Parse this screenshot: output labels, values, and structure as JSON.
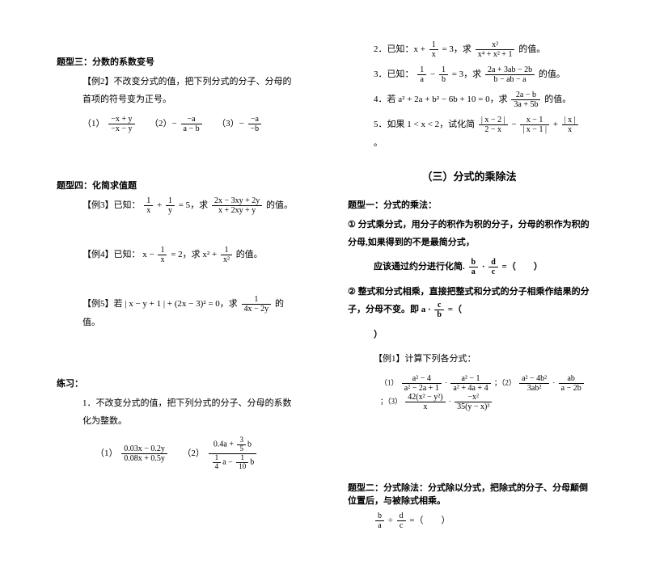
{
  "left": {
    "section3": {
      "title": "题型三：分数的系数变号",
      "ex2_label": "【例2】不改变分式的值，把下列分式的分子、分母的首项的符号变为正号。",
      "items": {
        "a_label": "（1）",
        "a": {
          "num": "−x + y",
          "den": "−x − y"
        },
        "b_label": "（2）−",
        "b": {
          "num": "−a",
          "den": "a − b"
        },
        "c_label": "（3）−",
        "c": {
          "num": "−a",
          "den": "−b"
        }
      }
    },
    "section4": {
      "title": "题型四：化简求值题",
      "ex3_label": "【例3】已知：",
      "ex3_cond": {
        "f1": {
          "num": "1",
          "den": "x"
        },
        "plus": " + ",
        "f2": {
          "num": "1",
          "den": "y"
        },
        "eq": " = 5，求 ",
        "f3": {
          "num": "2x − 3xy + 2y",
          "den": "x + 2xy + y"
        },
        "tail": " 的值。"
      },
      "ex4_label": "【例4】已知：",
      "ex4_cond": {
        "pre": "x − ",
        "f1": {
          "num": "1",
          "den": "x"
        },
        "eq": " = 2，求 x² + ",
        "f2": {
          "num": "1",
          "den": "x²"
        },
        "tail": " 的值。"
      },
      "ex5_label": "【例5】若 | x − y + 1 | + (2x − 3)² = 0，求 ",
      "ex5_frac": {
        "num": "1",
        "den": "4x − 2y"
      },
      "ex5_tail": " 的值。"
    },
    "practice": {
      "title": "练习：",
      "p1": "1．不改变分式的值，把下列分式的分子、分母的系数化为整数。",
      "p1a_label": "（1）",
      "p1a": {
        "num": "0.03x − 0.2y",
        "den": "0.08x + 0.5y"
      },
      "p1b_label": "（2）",
      "p1b_outer_num_pre": "0.4a + ",
      "p1b_nn": {
        "num": "3",
        "den": "5"
      },
      "p1b_outer_num_post": "b",
      "p1b_den_f1": {
        "num": "1",
        "den": "4"
      },
      "p1b_den_mid": "a − ",
      "p1b_den_f2": {
        "num": "1",
        "den": "10"
      },
      "p1b_den_post": "b"
    }
  },
  "right": {
    "items": {
      "i2_label": "2．已知：x + ",
      "i2_f1": {
        "num": "1",
        "den": "x"
      },
      "i2_mid": " = 3，求 ",
      "i2_f2": {
        "num": "x²",
        "den": "x⁴ + x² + 1"
      },
      "i2_tail": " 的值。",
      "i3_label": "3．已知：",
      "i3_f1": {
        "num": "1",
        "den": "a"
      },
      "i3_mid1": " − ",
      "i3_f2": {
        "num": "1",
        "den": "b"
      },
      "i3_mid2": " = 3，求 ",
      "i3_f3": {
        "num": "2a + 3ab − 2b",
        "den": "b − ab − a"
      },
      "i3_tail": " 的值。",
      "i4_label": "4．若 a² + 2a + b² − 6b + 10 = 0，求 ",
      "i4_f": {
        "num": "2a − b",
        "den": "3a + 5b"
      },
      "i4_tail": " 的值。",
      "i5_label": "5．如果 1 < x < 2，试化简 ",
      "i5_f1": {
        "num": "| x − 2 |",
        "den": "2 − x"
      },
      "i5_mid1": " − ",
      "i5_f2": {
        "num": "x − 1",
        "den": "| x − 1 |"
      },
      "i5_mid2": " + ",
      "i5_f3": {
        "num": "| x |",
        "den": "x"
      },
      "i5_tail": "。"
    },
    "subTitle": "（三）分式的乘除法",
    "t1": {
      "title": "题型一：分式的乘法：",
      "r1_label": "①",
      "r1": "分式乘分式，用分子的积作为积的分子，分母的积作为积的分母,如果得到的不是最简分式，",
      "r1b_pre": "应该通过约分进行化简.",
      "r1b_f1": {
        "num": "b",
        "den": "a"
      },
      "r1b_dot": "·",
      "r1b_f2": {
        "num": "d",
        "den": "c"
      },
      "r1b_tail": " =（　　）",
      "r2_label": "②",
      "r2": "整式和分式相乘，直接把整式和分式的分子相乘作结果的分子，分母不变。即 a · ",
      "r2_f": {
        "num": "c",
        "den": "b"
      },
      "r2_tail": " =（",
      "r2_close": "）",
      "ex1_label": "【例1】计算下列各分式：",
      "e1_label": "（1）",
      "e1_f1": {
        "num": "a² − 4",
        "den": "a² − 2a + 1"
      },
      "e1_dot": " · ",
      "e1_f2": {
        "num": "a² − 1",
        "den": "a² + 4a + 4"
      },
      "e2_label": "；（2）",
      "e2_f1": {
        "num": "a² − 4b²",
        "den": "3ab²"
      },
      "e2_dot": " · ",
      "e2_f2": {
        "num": "ab",
        "den": "a − 2b"
      },
      "e3_label": "；（3）",
      "e3_f1": {
        "num": "42(x² − y²)",
        "den": "x"
      },
      "e3_dot": " · ",
      "e3_f2": {
        "num": "−x²",
        "den": "35(y − x)³"
      }
    },
    "t2": {
      "title": "题型二：分式除法：分式除以分式，把除式的分子、分母颠倒位置后，与被除式相乘。",
      "f1": {
        "num": "b",
        "den": "a"
      },
      "div": " ÷ ",
      "f2": {
        "num": "d",
        "den": "c"
      },
      "tail": " =（　　）"
    }
  }
}
